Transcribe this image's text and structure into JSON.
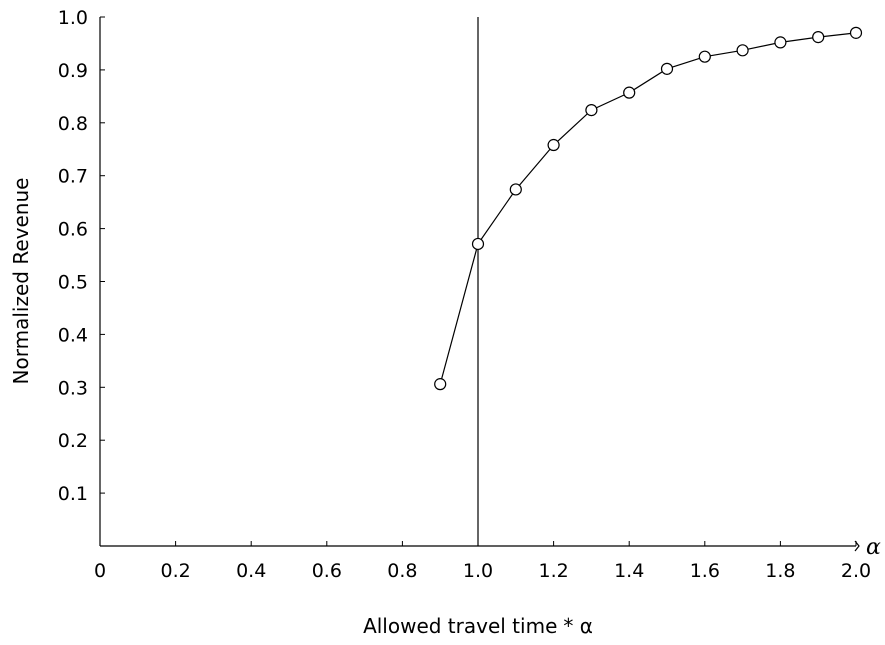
{
  "chart_data": {
    "type": "line",
    "title": "",
    "xlabel": "Allowed travel time",
    "xlabel_suffix": "* α",
    "ylabel": "Normalized Revenue",
    "x_axis_symbol": "α",
    "xlim": [
      0,
      2.0
    ],
    "ylim": [
      0,
      1.0
    ],
    "x_ticks": [
      0,
      0.2,
      0.4,
      0.6,
      0.8,
      1.0,
      1.2,
      1.4,
      1.6,
      1.8,
      2.0
    ],
    "x_tick_labels": [
      "0",
      "0.2",
      "0.4",
      "0.6",
      "0.8",
      "1.0",
      "1.2",
      "1.4",
      "1.6",
      "1.8",
      "2.0"
    ],
    "y_ticks": [
      0.1,
      0.2,
      0.3,
      0.4,
      0.5,
      0.6,
      0.7,
      0.8,
      0.9,
      1.0
    ],
    "y_tick_labels": [
      "0.1",
      "0.2",
      "0.3",
      "0.4",
      "0.5",
      "0.6",
      "0.7",
      "0.8",
      "0.9",
      "1.0"
    ],
    "grid": false,
    "legend": "none",
    "reference_line_x": 1.0,
    "series": [
      {
        "marker": "open-circle",
        "x": [
          0.9,
          1.0,
          1.1,
          1.2,
          1.3,
          1.4,
          1.5,
          1.6,
          1.7,
          1.8,
          1.9,
          2.0
        ],
        "y": [
          0.306,
          0.571,
          0.674,
          0.758,
          0.824,
          0.857,
          0.902,
          0.925,
          0.937,
          0.952,
          0.962,
          0.97
        ]
      }
    ]
  }
}
